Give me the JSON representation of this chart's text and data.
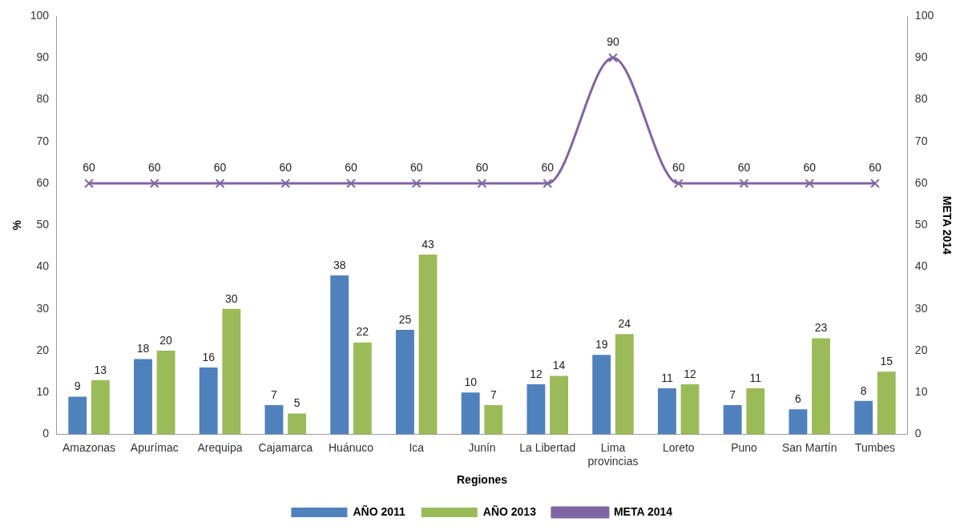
{
  "chart_data": {
    "type": "bar",
    "xlabel": "Regiones",
    "ylabel": "%",
    "y2label": "META 2014",
    "categories": [
      "Amazonas",
      "Apurímac",
      "Arequipa",
      "Cajamarca",
      "Huánuco",
      "Ica",
      "Junín",
      "La Libertad",
      "Lima provincias",
      "Loreto",
      "Puno",
      "San Martín",
      "Tumbes"
    ],
    "series": [
      {
        "name": "AÑO 2011",
        "color": "#4f81bd",
        "values": [
          9,
          18,
          16,
          7,
          38,
          25,
          10,
          12,
          19,
          11,
          7,
          6,
          8
        ]
      },
      {
        "name": "AÑO 2013",
        "color": "#9bbb59",
        "values": [
          13,
          20,
          30,
          5,
          22,
          43,
          7,
          14,
          24,
          12,
          11,
          23,
          15
        ]
      },
      {
        "name": "META 2014",
        "type": "line",
        "axis": "y2",
        "color": "#8064a2",
        "marker": "cross",
        "values": [
          60,
          60,
          60,
          60,
          60,
          60,
          60,
          60,
          90,
          60,
          60,
          60,
          60
        ]
      }
    ],
    "ylim": [
      0,
      100
    ],
    "yticks": [
      0,
      10,
      20,
      30,
      40,
      50,
      60,
      70,
      80,
      90,
      100
    ],
    "y2lim": [
      0,
      100
    ],
    "y2ticks": [
      0,
      10,
      20,
      30,
      40,
      50,
      60,
      70,
      80,
      90,
      100
    ],
    "data_labels": true,
    "grid": false,
    "legend": "bottom"
  }
}
